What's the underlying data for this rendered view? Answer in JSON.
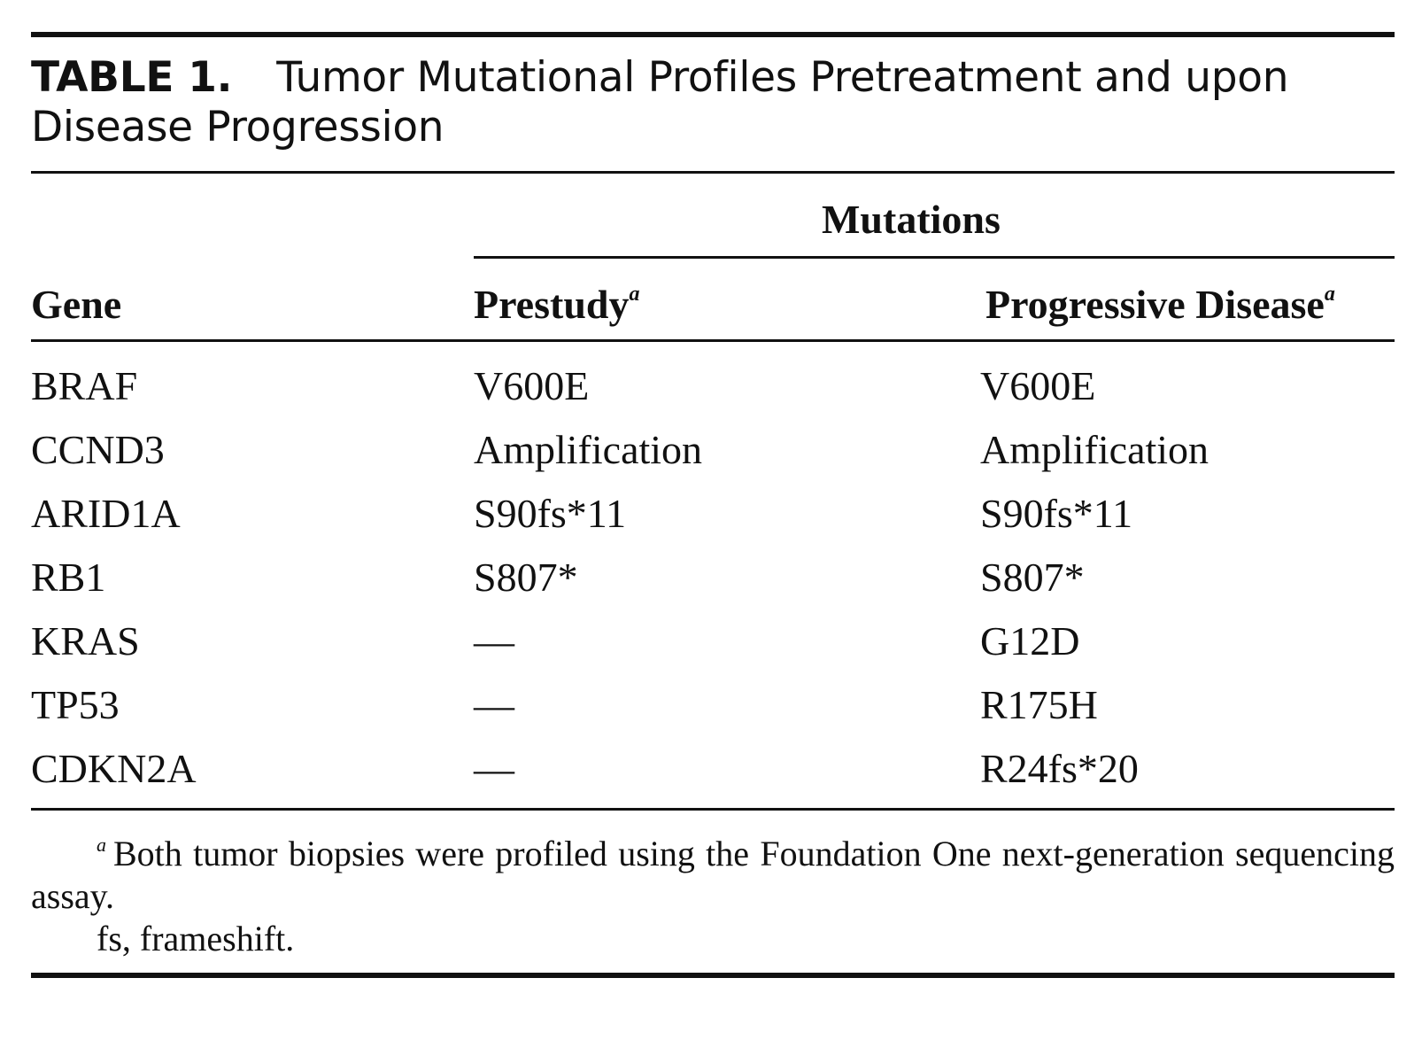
{
  "caption": {
    "label": "TABLE 1.",
    "title": "Tumor Mutational Profiles Pretreatment and upon Disease Progression"
  },
  "table": {
    "spanner": "Mutations",
    "headers": {
      "gene": "Gene",
      "prestudy": "Prestudy",
      "progressive": "Progressive Disease",
      "footnote_marker": "a"
    },
    "rows": [
      {
        "gene": "BRAF",
        "prestudy": "V600E",
        "progressive": "V600E"
      },
      {
        "gene": "CCND3",
        "prestudy": "Amplification",
        "progressive": "Amplification"
      },
      {
        "gene": "ARID1A",
        "prestudy": "S90fs*11",
        "progressive": "S90fs*11"
      },
      {
        "gene": "RB1",
        "prestudy": "S807*",
        "progressive": "S807*"
      },
      {
        "gene": "KRAS",
        "prestudy": "—",
        "progressive": "G12D"
      },
      {
        "gene": "TP53",
        "prestudy": "—",
        "progressive": "R175H"
      },
      {
        "gene": "CDKN2A",
        "prestudy": "—",
        "progressive": "R24fs*20"
      }
    ]
  },
  "footnotes": {
    "a_marker": "a",
    "a_text": "Both tumor biopsies were profiled using the Foundation One next-generation sequencing assay.",
    "abbrev": "fs, frameshift."
  }
}
